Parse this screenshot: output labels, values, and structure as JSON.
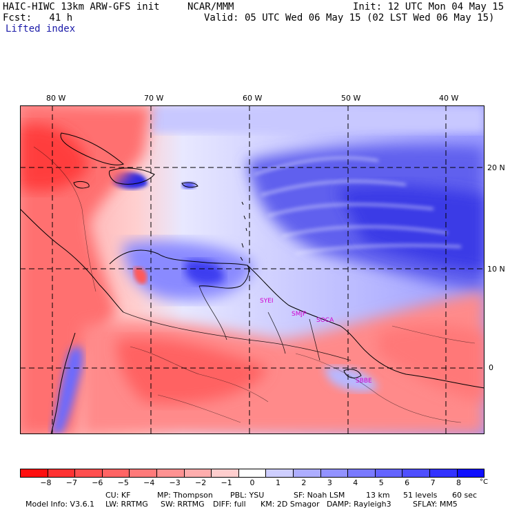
{
  "header": {
    "model_title": "HAIC-HIWC 13km ARW-GFS init",
    "org": "NCAR/MMM",
    "init_time": "Init: 12 UTC Mon 04 May 15",
    "fcst": "Fcst:   41 h",
    "valid_time": "Valid: 05 UTC Wed 06 May 15 (02 LST Wed 06 May 15)",
    "field_name": "Lifted index"
  },
  "map": {
    "lon_labels": [
      "80 W",
      "70 W",
      "60 W",
      "50 W",
      "40 W"
    ],
    "lat_labels": [
      "20 N",
      "10 N",
      "0"
    ],
    "stations": [
      "SYEI",
      "SMJP",
      "SOCA",
      "SBBE"
    ]
  },
  "colorbar": {
    "colors": [
      "#ff0f0f",
      "#ff3232",
      "#ff4f4f",
      "#ff6464",
      "#ff7a7a",
      "#ff9292",
      "#ffadad",
      "#ffcece",
      "#ffffff",
      "#ceceff",
      "#adadff",
      "#9292ff",
      "#7a7aff",
      "#6464ff",
      "#4f4fff",
      "#3232ff",
      "#0f0fff"
    ],
    "ticks": [
      "−8",
      "−7",
      "−6",
      "−5",
      "−4",
      "−3",
      "−2",
      "−1",
      "0",
      "1",
      "2",
      "3",
      "4",
      "5",
      "6",
      "7",
      "8"
    ],
    "unit": "°C"
  },
  "footer": {
    "line1_parts": [
      "Model Info: V3.6.1",
      "CU: KF",
      "MP: Thompson",
      "PBL: YSU",
      "SF: Noah LSM",
      "13 km",
      "51 levels",
      "60 sec"
    ],
    "line2_parts": [
      "LW: RRTMG",
      "SW: RRTMG",
      "DIFF: full",
      "KM: 2D Smagor",
      "DAMP: Rayleigh3",
      "SFLAY: MM5"
    ]
  }
}
